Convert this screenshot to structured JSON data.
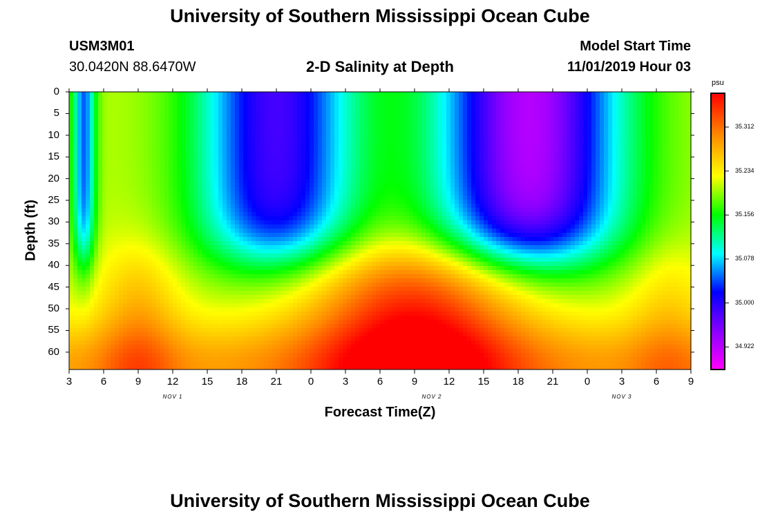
{
  "titles": {
    "top": "University of Southern Mississippi Ocean Cube",
    "bottom": "University of Southern Mississippi Ocean Cube"
  },
  "station": {
    "id": "USM3M01",
    "coords": "30.0420N 88.6470W"
  },
  "model": {
    "label": "Model Start Time",
    "start": "11/01/2019 Hour 03"
  },
  "chart_data": {
    "type": "heatmap",
    "title": "2-D Salinity at Depth",
    "xlabel": "Forecast Time(Z)",
    "ylabel": "Depth (ft)",
    "x_tick_labels": [
      "3",
      "6",
      "9",
      "12",
      "15",
      "18",
      "21",
      "0",
      "3",
      "6",
      "9",
      "12",
      "15",
      "18",
      "21",
      "0",
      "3",
      "6",
      "9"
    ],
    "x_date_labels": [
      {
        "label": "NOV 1",
        "at_tick": 3
      },
      {
        "label": "NOV 2",
        "at_tick": 10.5
      },
      {
        "label": "NOV 3",
        "at_tick": 16
      }
    ],
    "x_range_hours_from_start": [
      0,
      54
    ],
    "y_tick_labels": [
      "0",
      "5",
      "10",
      "15",
      "20",
      "25",
      "30",
      "35",
      "40",
      "45",
      "50",
      "55",
      "60"
    ],
    "y_range_ft": [
      0,
      64
    ],
    "y_inverted": true,
    "colorbar": {
      "unit": "psu",
      "tick_labels": [
        "35.312",
        "35.234",
        "35.156",
        "35.078",
        "35.000",
        "34.922"
      ],
      "range": [
        34.882,
        35.372
      ],
      "colors": [
        "#ff00ff",
        "#8800ff",
        "#0000ff",
        "#00ffff",
        "#00ff00",
        "#ffff00",
        "#ff8800",
        "#ff0000"
      ]
    },
    "description_note": ""
  }
}
